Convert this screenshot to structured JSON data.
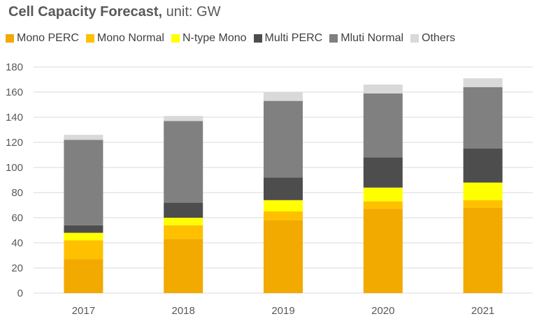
{
  "title_bold": "Cell Capacity Forecast,",
  "title_rest": " unit: GW",
  "chart_data": {
    "type": "bar",
    "stacked": true,
    "categories": [
      "2017",
      "2018",
      "2019",
      "2020",
      "2021"
    ],
    "ylim": [
      0,
      180
    ],
    "yticks": [
      0,
      20,
      40,
      60,
      80,
      100,
      120,
      140,
      160,
      180
    ],
    "grid": true,
    "legend_position": "top",
    "series": [
      {
        "name": "Mono PERC",
        "color": "#F2A900",
        "values": [
          27,
          43,
          58,
          67,
          68
        ]
      },
      {
        "name": "Mono Normal",
        "color": "#FFC000",
        "values": [
          15,
          11,
          7,
          6,
          6
        ]
      },
      {
        "name": "N-type Mono",
        "color": "#FFFF00",
        "values": [
          6,
          6,
          9,
          11,
          14
        ]
      },
      {
        "name": "Multi PERC",
        "color": "#4D4D4D",
        "values": [
          6,
          12,
          18,
          24,
          27
        ]
      },
      {
        "name": "Mluti Normal",
        "color": "#808080",
        "values": [
          68,
          65,
          61,
          51,
          49
        ]
      },
      {
        "name": "Others",
        "color": "#D9D9D9",
        "values": [
          4,
          4,
          7,
          7,
          7
        ]
      }
    ]
  }
}
